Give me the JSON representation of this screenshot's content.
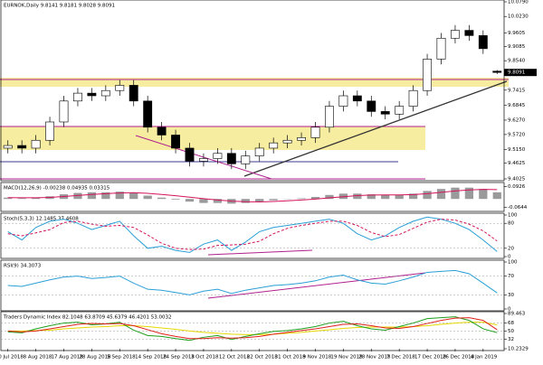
{
  "chart_data": [
    {
      "type": "candlestick",
      "title": "EURNOK,Daily  9.8141 9.8181 9.8028 9.8091",
      "categories": [
        "30 Jul 2018",
        null,
        "8 Aug 2018",
        null,
        "17 Aug 2018",
        null,
        "28 Aug 2018",
        null,
        "5 Sep 2018",
        null,
        "14 Sep 2018",
        null,
        "24 Sep 2018",
        null,
        "3 Oct 2018",
        null,
        "12 Oct 2018",
        null,
        "22 Oct 2018",
        null,
        "31 Oct 2018",
        null,
        "9 Nov 2018",
        null,
        "19 Nov 2018",
        null,
        "28 Nov 2018",
        null,
        "7 Dec 2018",
        null,
        "17 Dec 2018",
        null,
        "26 Dec 2018",
        null,
        "4 Jan 2019",
        null
      ],
      "open": [
        9.52,
        9.53,
        9.52,
        9.55,
        9.62,
        9.7,
        9.73,
        9.72,
        9.74,
        9.76,
        9.7,
        9.6,
        9.57,
        9.52,
        9.47,
        9.48,
        9.5,
        9.46,
        9.49,
        9.52,
        9.54,
        9.55,
        9.56,
        9.6,
        9.68,
        9.72,
        9.7,
        9.66,
        9.65,
        9.68,
        9.74,
        9.86,
        9.94,
        9.97,
        9.95,
        9.8141
      ],
      "high": [
        9.55,
        9.55,
        9.57,
        9.64,
        9.72,
        9.75,
        9.75,
        9.76,
        9.78,
        9.78,
        9.72,
        9.62,
        9.59,
        9.54,
        9.5,
        9.52,
        9.52,
        9.51,
        9.54,
        9.56,
        9.57,
        9.58,
        9.62,
        9.7,
        9.74,
        9.74,
        9.72,
        9.68,
        9.7,
        9.76,
        9.88,
        9.96,
        9.99,
        9.99,
        9.97,
        9.8181
      ],
      "low": [
        9.5,
        9.5,
        9.5,
        9.53,
        9.6,
        9.68,
        9.7,
        9.7,
        9.72,
        9.68,
        9.58,
        9.55,
        9.5,
        9.45,
        9.45,
        9.46,
        9.44,
        9.44,
        9.47,
        9.5,
        9.52,
        9.53,
        9.54,
        9.58,
        9.66,
        9.68,
        9.64,
        9.63,
        9.63,
        9.66,
        9.72,
        9.84,
        9.92,
        9.93,
        9.88,
        9.8028
      ],
      "close": [
        9.53,
        9.52,
        9.55,
        9.62,
        9.7,
        9.73,
        9.72,
        9.74,
        9.76,
        9.7,
        9.6,
        9.57,
        9.52,
        9.47,
        9.48,
        9.5,
        9.46,
        9.49,
        9.52,
        9.54,
        9.55,
        9.56,
        9.6,
        9.68,
        9.72,
        9.7,
        9.66,
        9.65,
        9.68,
        9.74,
        9.86,
        9.94,
        9.97,
        9.95,
        9.9,
        9.8091
      ],
      "ylim": [
        9.4025,
        10.079
      ],
      "yticks": [
        {
          "value": 10.079,
          "label": "10.0790"
        },
        {
          "value": 10.023,
          "label": "10.0230"
        },
        9.9605,
        9.9085,
        {
          "value": 9.854,
          "label": "9.8540"
        },
        9.7415,
        9.6845,
        {
          "value": 9.627,
          "label": "9.6270"
        },
        {
          "value": 9.572,
          "label": "9.5720"
        },
        {
          "value": 9.515,
          "label": "9.5150"
        },
        9.4625,
        9.4025
      ]
    },
    {
      "type": "bar",
      "title": "MACD(12,26,9) -0.00238 0.04935 0.03315",
      "series": [
        {
          "style": "bar",
          "color": "#9a9a9a",
          "values": [
            0.01,
            0.005,
            0.01,
            0.02,
            0.035,
            0.045,
            0.05,
            0.05,
            0.055,
            0.045,
            0.025,
            0.01,
            -0.005,
            -0.02,
            -0.03,
            -0.03,
            -0.035,
            -0.03,
            -0.02,
            -0.01,
            -0.002,
            0.005,
            0.015,
            0.03,
            0.04,
            0.04,
            0.035,
            0.03,
            0.03,
            0.04,
            0.06,
            0.075,
            0.085,
            0.085,
            0.075,
            0.05
          ]
        },
        {
          "style": "line",
          "color": "#d4145a",
          "values": [
            0.01,
            0.009,
            0.009,
            0.012,
            0.018,
            0.026,
            0.034,
            0.04,
            0.045,
            0.047,
            0.042,
            0.034,
            0.024,
            0.013,
            0.002,
            -0.008,
            -0.016,
            -0.021,
            -0.022,
            -0.019,
            -0.014,
            -0.008,
            -0.001,
            0.008,
            0.017,
            0.025,
            0.029,
            0.03,
            0.03,
            0.033,
            0.04,
            0.05,
            0.06,
            0.068,
            0.072,
            0.07
          ]
        }
      ],
      "ylim": [
        -0.08,
        0.11
      ],
      "yticks": [
        0.0926,
        -0.0644
      ]
    },
    {
      "type": "line",
      "title": "Stoch(5,3,3) 12.1485 37.4608",
      "series": [
        {
          "style": "line",
          "color": "#2a9fd6",
          "values": [
            60,
            40,
            70,
            85,
            90,
            80,
            65,
            75,
            85,
            50,
            20,
            25,
            15,
            10,
            30,
            40,
            15,
            35,
            60,
            70,
            75,
            80,
            85,
            90,
            80,
            55,
            40,
            50,
            70,
            85,
            95,
            90,
            80,
            65,
            40,
            12.1485
          ]
        },
        {
          "style": "dash",
          "color": "#d4145a",
          "values": [
            55,
            50,
            57,
            65,
            82,
            85,
            78,
            73,
            75,
            70,
            52,
            32,
            20,
            17,
            18,
            27,
            28,
            30,
            37,
            55,
            68,
            75,
            80,
            85,
            85,
            75,
            58,
            48,
            53,
            68,
            83,
            90,
            88,
            78,
            62,
            37.4608
          ]
        }
      ],
      "ylim": [
        0,
        100
      ],
      "yticks": [
        100,
        80,
        20,
        0
      ]
    },
    {
      "type": "line",
      "title": "RSI(9) 34.3073",
      "series": [
        {
          "style": "line",
          "color": "#2a9fd6",
          "values": [
            50,
            48,
            55,
            62,
            68,
            70,
            65,
            67,
            70,
            55,
            42,
            40,
            35,
            30,
            38,
            42,
            33,
            40,
            45,
            50,
            52,
            55,
            60,
            68,
            72,
            62,
            55,
            53,
            60,
            68,
            78,
            80,
            82,
            75,
            55,
            34.3073
          ]
        }
      ],
      "ylim": [
        0,
        100
      ],
      "yticks": [
        100,
        70,
        30,
        0
      ]
    },
    {
      "type": "line",
      "title": "Traders Dynamic Index 82.1048 63.8709 45.6379 46.4201 53.0032",
      "series": [
        {
          "style": "line",
          "color": "#e6d800",
          "values": [
            50,
            50,
            51,
            52,
            55,
            57,
            59,
            60,
            62,
            62,
            60,
            57,
            54,
            50,
            47,
            45,
            43,
            42,
            42,
            43,
            45,
            47,
            50,
            53,
            56,
            58,
            59,
            59,
            59,
            60,
            62,
            65,
            68,
            70,
            70,
            63.8709
          ]
        },
        {
          "style": "line",
          "color": "#1c9e1c",
          "values": [
            48,
            46,
            55,
            62,
            68,
            70,
            64,
            66,
            70,
            52,
            40,
            38,
            33,
            29,
            36,
            40,
            31,
            38,
            44,
            49,
            51,
            55,
            60,
            68,
            72,
            62,
            55,
            52,
            60,
            68,
            78,
            80,
            82,
            74,
            55,
            46.4201
          ]
        },
        {
          "style": "line",
          "color": "#e0201b",
          "values": [
            50,
            48,
            50,
            55,
            60,
            65,
            67,
            66,
            67,
            62,
            53,
            44,
            38,
            33,
            33,
            35,
            34,
            35,
            38,
            43,
            47,
            51,
            55,
            60,
            65,
            66,
            62,
            57,
            56,
            60,
            67,
            74,
            79,
            80,
            74,
            53.0032
          ]
        }
      ],
      "ylim": [
        10.2329,
        89.463
      ],
      "yticks": [
        89.463,
        68,
        50,
        32,
        10.2329
      ]
    }
  ]
}
